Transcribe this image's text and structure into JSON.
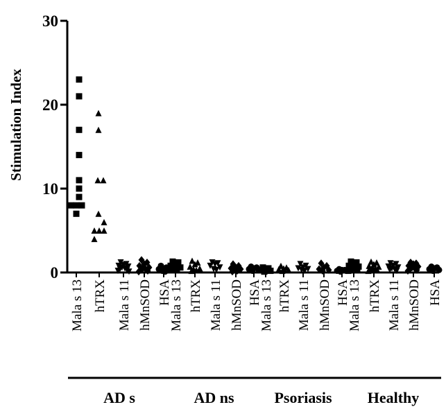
{
  "chart_data": {
    "type": "scatter",
    "title": "",
    "xlabel": "",
    "ylabel": "Stimulation Index",
    "ylim": [
      0,
      30
    ],
    "yticks": [
      0,
      10,
      20,
      30
    ],
    "grid": false,
    "legend": "none",
    "categories": [
      "Mala s 13",
      "hTRX",
      "Mala s 11",
      "hMnSOD",
      "HSA",
      "Mala s 13",
      "hTRX",
      "Mala s 11",
      "hMnSOD",
      "HSA",
      "Mala s 13",
      "hTRX",
      "Mala s 11",
      "hMnSOD",
      "HSA",
      "Mala s 13",
      "hTRX",
      "Mala s 11",
      "hMnSOD",
      "HSA"
    ],
    "groups": [
      {
        "label": "AD s",
        "categories": [
          0,
          4
        ]
      },
      {
        "label": "AD ns",
        "categories": [
          5,
          9
        ]
      },
      {
        "label": "Psoriasis",
        "categories": [
          10,
          14
        ]
      },
      {
        "label": "Healthy",
        "categories": [
          15,
          19
        ]
      }
    ],
    "marker_cycle": [
      "square",
      "triangle",
      "inverted-triangle",
      "diamond",
      "circle"
    ],
    "series": [
      {
        "category": 0,
        "values": [
          23,
          21,
          17,
          14,
          11,
          10,
          9,
          8,
          8,
          8,
          7
        ]
      },
      {
        "category": 1,
        "values": [
          19,
          17,
          11,
          11,
          7,
          6,
          5,
          5,
          5,
          4
        ]
      },
      {
        "category": 2,
        "values": [
          1.2,
          1.0,
          0.9,
          0.8,
          0.7,
          0.6,
          0.5,
          0.4,
          0.3,
          0.2,
          0.1
        ]
      },
      {
        "category": 3,
        "values": [
          1.5,
          1.2,
          1.0,
          0.8,
          0.6,
          0.5,
          0.4,
          0.3,
          0.2,
          0.1
        ]
      },
      {
        "category": 4,
        "values": [
          0.8,
          0.6,
          0.5,
          0.4,
          0.3,
          0.2,
          0.1
        ]
      },
      {
        "category": 5,
        "values": [
          1.3,
          1.2,
          1.0,
          0.8,
          0.6,
          0.5,
          0.4,
          0.3
        ]
      },
      {
        "category": 6,
        "values": [
          1.4,
          1.2,
          1.0,
          0.7,
          0.5,
          0.4,
          0.3,
          0.2
        ]
      },
      {
        "category": 7,
        "values": [
          1.2,
          1.1,
          1.0,
          0.8,
          0.6,
          0.4,
          0.3
        ]
      },
      {
        "category": 8,
        "values": [
          1.0,
          0.8,
          0.6,
          0.5,
          0.4,
          0.3,
          0.2,
          0.1
        ]
      },
      {
        "category": 9,
        "values": [
          0.7,
          0.6,
          0.5,
          0.4,
          0.3,
          0.2
        ]
      },
      {
        "category": 10,
        "values": [
          0.6,
          0.5,
          0.4,
          0.3,
          0.2,
          0.1
        ]
      },
      {
        "category": 11,
        "values": [
          0.8,
          0.6,
          0.5,
          0.4,
          0.3,
          0.2
        ]
      },
      {
        "category": 12,
        "values": [
          1.0,
          0.8,
          0.6,
          0.5,
          0.4,
          0.3,
          0.2
        ]
      },
      {
        "category": 13,
        "values": [
          1.1,
          0.8,
          0.6,
          0.4,
          0.3,
          0.2
        ]
      },
      {
        "category": 14,
        "values": [
          0.4,
          0.3,
          0.3,
          0.2,
          0.2,
          0.1
        ]
      },
      {
        "category": 15,
        "values": [
          1.3,
          1.2,
          1.0,
          0.8,
          0.7,
          0.6,
          0.5,
          0.4,
          0.3,
          0.2
        ]
      },
      {
        "category": 16,
        "values": [
          1.3,
          1.2,
          1.0,
          0.8,
          0.7,
          0.6,
          0.5,
          0.4,
          0.3,
          0.2
        ]
      },
      {
        "category": 17,
        "values": [
          1.1,
          1.0,
          0.8,
          0.7,
          0.6,
          0.5,
          0.4,
          0.3,
          0.2
        ]
      },
      {
        "category": 18,
        "values": [
          1.2,
          1.1,
          1.0,
          0.8,
          0.7,
          0.6,
          0.5,
          0.4,
          0.3,
          0.2
        ]
      },
      {
        "category": 19,
        "values": [
          0.7,
          0.6,
          0.5,
          0.4,
          0.3,
          0.2
        ]
      }
    ]
  }
}
